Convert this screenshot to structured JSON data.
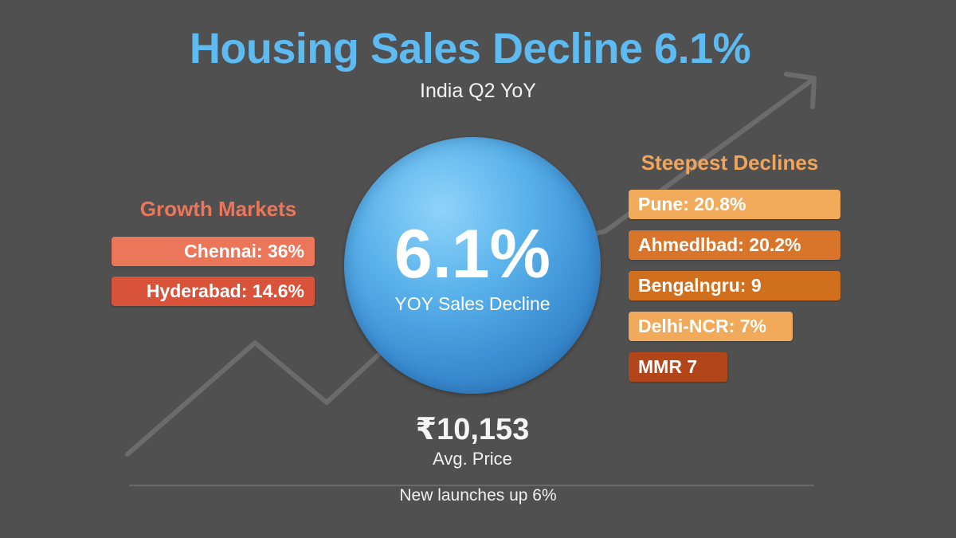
{
  "title": "Housing Sales Decline 6.1%",
  "subtitle": "India Q2 YoY",
  "headline": {
    "value": "6.1%",
    "label": "YOY Sales Decline",
    "color": "#4a9fe0"
  },
  "growth_markets": {
    "heading": "Growth Markets",
    "items": [
      {
        "label": "Chennai: 36%",
        "color": "#ec7659"
      },
      {
        "label": "Hyderabad: 14.6%",
        "color": "#d9523a"
      }
    ]
  },
  "steepest_declines": {
    "heading": "Steepest Declines",
    "items": [
      {
        "label": "Pune: 20.8%",
        "color": "#f2aa5b"
      },
      {
        "label": "Ahmedlbad: 20.2%",
        "color": "#d9752a"
      },
      {
        "label": "Bengalngru: 9",
        "color": "#d0701f"
      },
      {
        "label": "Delhi-NCR: 7%",
        "color": "#f1a95a"
      },
      {
        "label": "MMR 7",
        "color": "#b2451a"
      }
    ]
  },
  "avg_price": {
    "value": "₹10,153",
    "label": "Avg. Price"
  },
  "footnote": "New launches up 6%",
  "background_decoration": "trend-arrow-icon"
}
